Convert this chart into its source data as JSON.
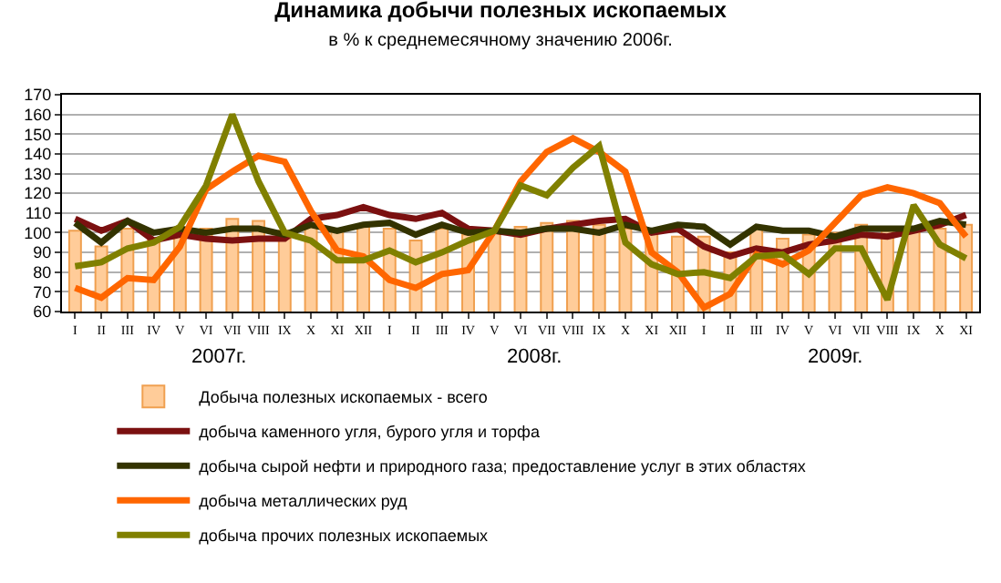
{
  "chart_data": {
    "type": "line",
    "title": "Динамика добычи полезных ископаемых",
    "subtitle": "в % к среднемесячному значению 2006г.",
    "categories": [
      "I",
      "II",
      "III",
      "IV",
      "V",
      "VI",
      "VII",
      "VIII",
      "IX",
      "X",
      "XI",
      "XII",
      "I",
      "II",
      "III",
      "IV",
      "V",
      "VI",
      "VII",
      "VIII",
      "IX",
      "X",
      "XI",
      "XII",
      "I",
      "II",
      "III",
      "IV",
      "V",
      "VI",
      "VII",
      "VIII",
      "IX",
      "X",
      "XI"
    ],
    "annotations": [
      "2007г.",
      "2008г.",
      "2009г."
    ],
    "series": [
      {
        "name": "Добыча полезных ископаемых - всего",
        "type": "bar",
        "color": "#ffcc99",
        "values": [
          101,
          93,
          102,
          97,
          99,
          102,
          107,
          106,
          101,
          103,
          101,
          104,
          102,
          96,
          102,
          99,
          101,
          103,
          105,
          106,
          104,
          102,
          100,
          98,
          98,
          90,
          102,
          97,
          99,
          100,
          104,
          101,
          102,
          102,
          104
        ]
      },
      {
        "name": "добыча каменного угля, бурого угля и торфа",
        "color": "#7b1010",
        "values": [
          107,
          101,
          106,
          96,
          99,
          97,
          96,
          97,
          97,
          107,
          109,
          113,
          109,
          107,
          110,
          102,
          101,
          99,
          102,
          104,
          106,
          107,
          100,
          102,
          93,
          88,
          92,
          90,
          94,
          96,
          99,
          98,
          101,
          104,
          109
        ]
      },
      {
        "name": "добыча сырой нефти и природного газа; предоставление услуг в этих областях",
        "color": "#333300",
        "values": [
          105,
          95,
          106,
          100,
          102,
          100,
          102,
          102,
          99,
          104,
          101,
          104,
          105,
          99,
          104,
          100,
          101,
          100,
          102,
          102,
          100,
          104,
          101,
          104,
          103,
          94,
          103,
          101,
          101,
          98,
          102,
          102,
          102,
          106,
          104
        ]
      },
      {
        "name": "добыча металлических руд",
        "color": "#ff6600",
        "values": [
          72,
          67,
          77,
          76,
          93,
          122,
          131,
          139,
          136,
          111,
          91,
          88,
          76,
          72,
          79,
          81,
          101,
          126,
          141,
          148,
          141,
          131,
          90,
          80,
          62,
          69,
          89,
          84,
          91,
          105,
          119,
          123,
          120,
          115,
          98
        ]
      },
      {
        "name": "добыча прочих полезных ископаемых",
        "color": "#808000",
        "values": [
          83,
          85,
          92,
          95,
          103,
          124,
          160,
          126,
          100,
          96,
          86,
          86,
          91,
          85,
          90,
          96,
          101,
          124,
          119,
          133,
          144,
          95,
          84,
          79,
          80,
          77,
          88,
          89,
          79,
          92,
          92,
          66,
          114,
          94,
          87
        ]
      }
    ],
    "ylim": [
      60,
      170
    ],
    "yticks": [
      60,
      70,
      80,
      90,
      100,
      110,
      120,
      130,
      140,
      150,
      160,
      170
    ],
    "grid": "y",
    "legend": "bottom",
    "line_style": "solid",
    "marker": "none"
  }
}
